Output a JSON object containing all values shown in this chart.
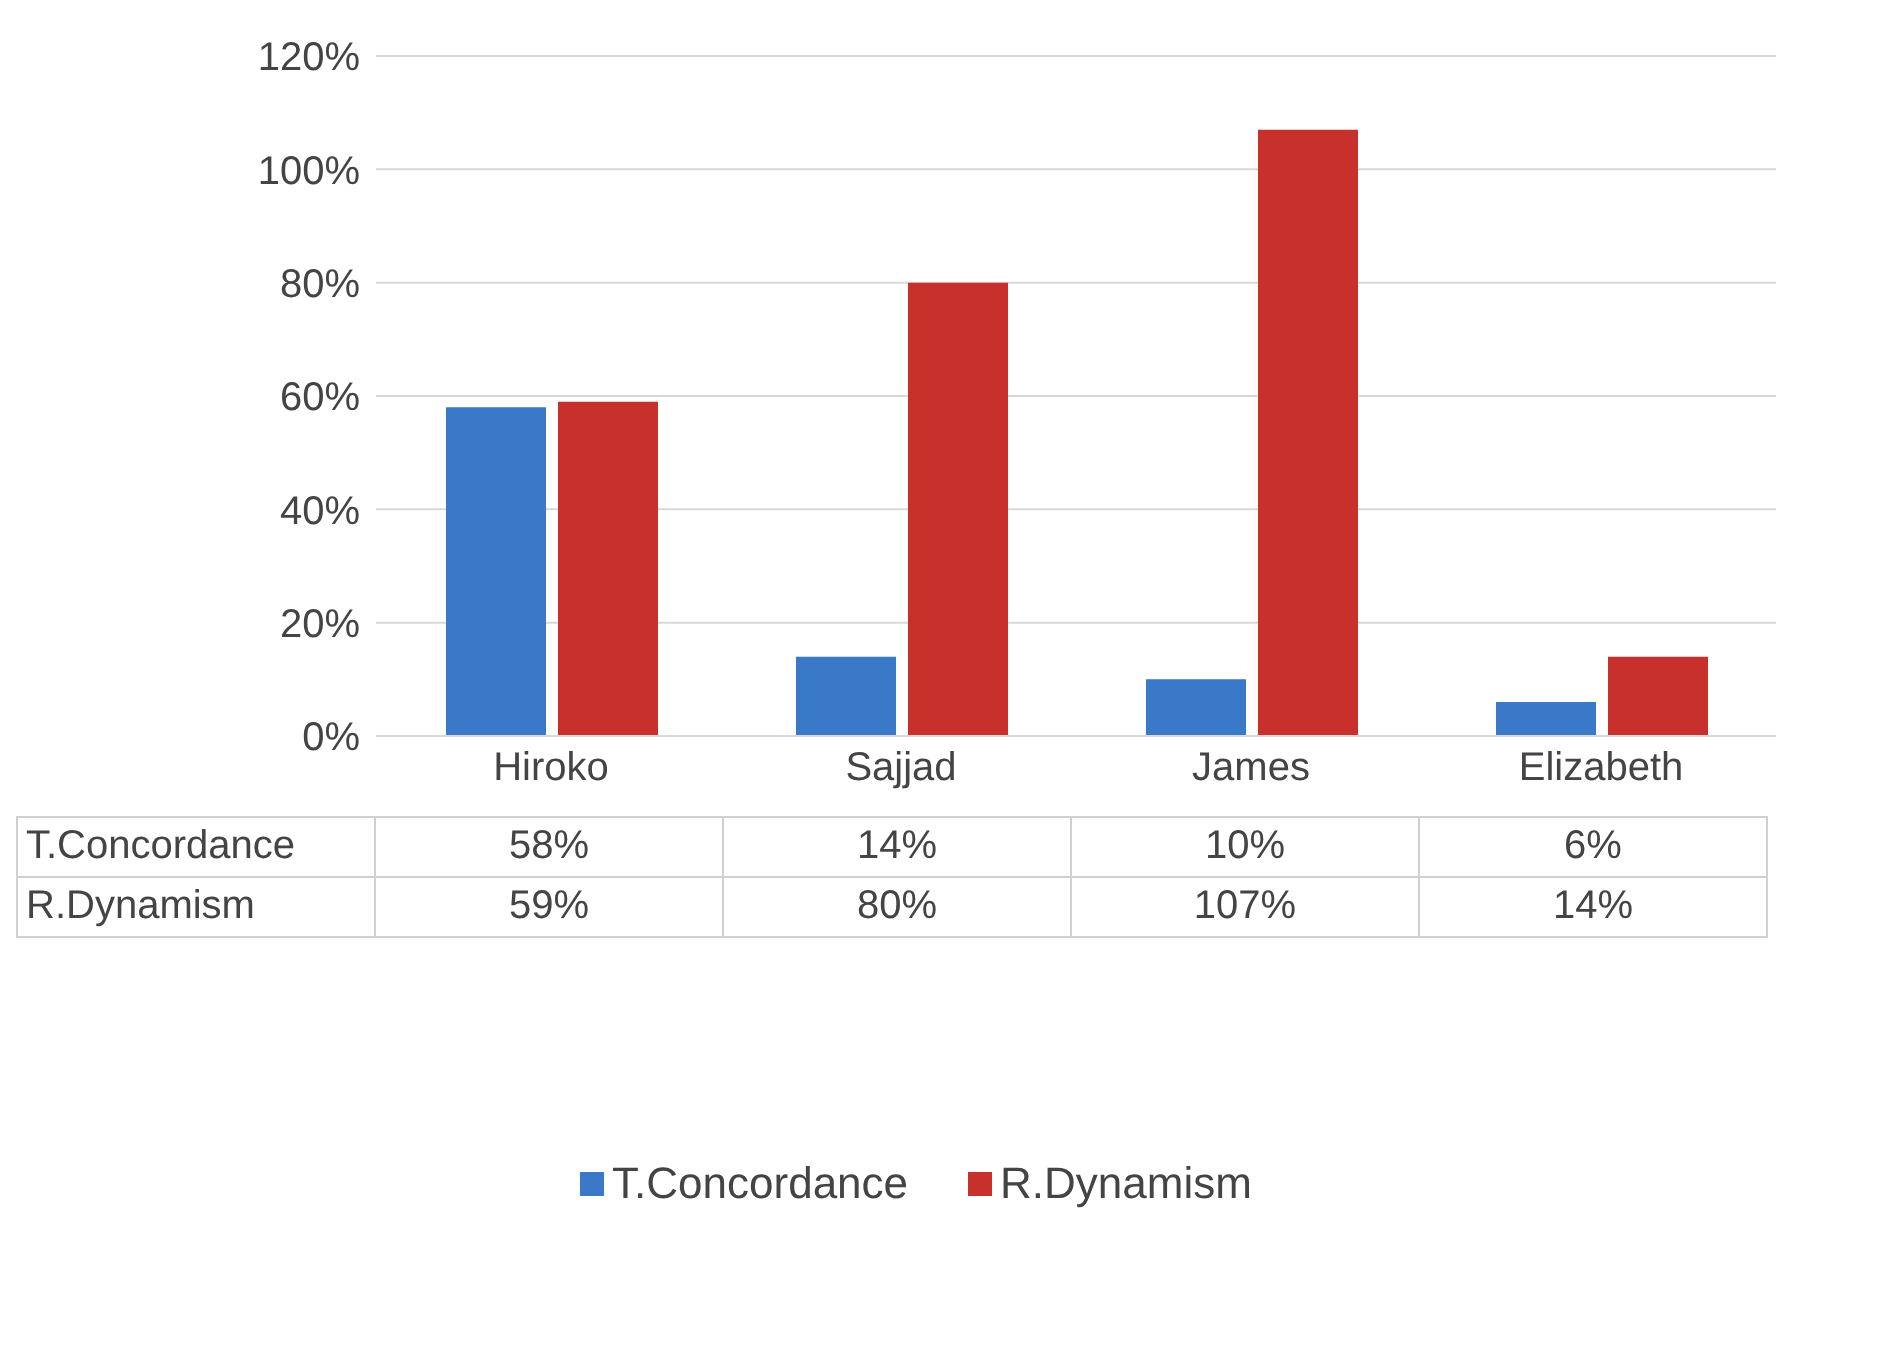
{
  "chart_data": {
    "type": "bar",
    "categories": [
      "Hiroko",
      "Sajjad",
      "James",
      "Elizabeth"
    ],
    "series": [
      {
        "name": "T.Concordance",
        "color": "#3a78c8",
        "values": [
          58,
          14,
          10,
          6
        ]
      },
      {
        "name": "R.Dynamism",
        "color": "#c8302c",
        "values": [
          59,
          80,
          107,
          14
        ]
      }
    ],
    "ylim": [
      0,
      120
    ],
    "yticks": [
      {
        "value": 0,
        "label": "0%"
      },
      {
        "value": 20,
        "label": "20%"
      },
      {
        "value": 40,
        "label": "40%"
      },
      {
        "value": 60,
        "label": "60%"
      },
      {
        "value": 80,
        "label": "80%"
      },
      {
        "value": 100,
        "label": "100%"
      },
      {
        "value": 120,
        "label": "120%"
      }
    ],
    "value_labels": [
      [
        "58%",
        "14%",
        "10%",
        "6%"
      ],
      [
        "59%",
        "80%",
        "107%",
        "14%"
      ]
    ],
    "grid": "y",
    "legend": "bottom"
  }
}
